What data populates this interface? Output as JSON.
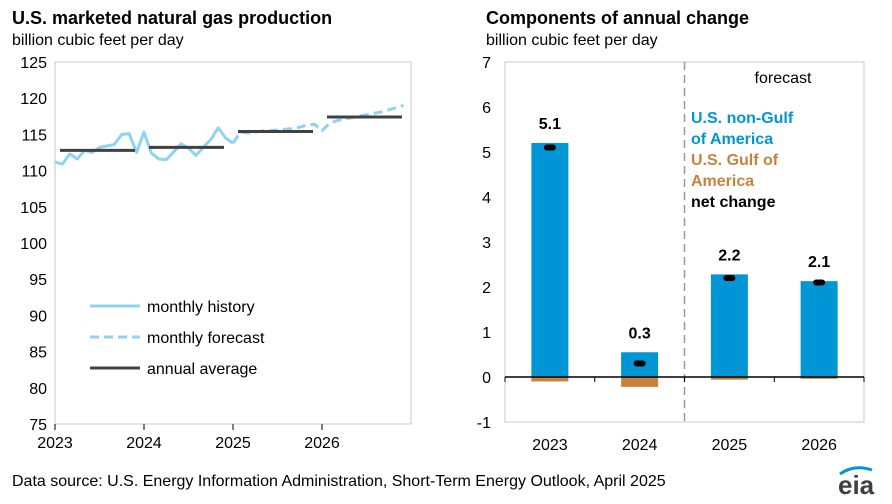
{
  "chart_data": [
    {
      "type": "line",
      "title": "U.S. marketed natural gas production",
      "subtitle": "billion cubic feet per day",
      "x_ticks": [
        "2023",
        "2024",
        "2025",
        "2026"
      ],
      "ylim": [
        75,
        125
      ],
      "y_ticks": [
        75,
        80,
        85,
        90,
        95,
        100,
        105,
        110,
        115,
        120,
        125
      ],
      "grid": false,
      "legend_position": "bottom-left",
      "series": [
        {
          "name": "monthly history",
          "style": "solid",
          "color": "#8fd3f4",
          "x": [
            "2023-01",
            "2023-02",
            "2023-03",
            "2023-04",
            "2023-05",
            "2023-06",
            "2023-07",
            "2023-08",
            "2023-09",
            "2023-10",
            "2023-11",
            "2023-12",
            "2024-01",
            "2024-02",
            "2024-03",
            "2024-04",
            "2024-05",
            "2024-06",
            "2024-07",
            "2024-08",
            "2024-09",
            "2024-10",
            "2024-11",
            "2024-12",
            "2025-01"
          ],
          "values": [
            111.2,
            110.9,
            112.3,
            111.6,
            112.8,
            112.5,
            113.2,
            113.4,
            113.6,
            115.0,
            115.1,
            112.5,
            115.3,
            112.4,
            111.6,
            111.5,
            112.6,
            113.7,
            113.1,
            112.1,
            113.2,
            114.3,
            115.9,
            114.5,
            113.8
          ]
        },
        {
          "name": "monthly forecast",
          "style": "dashed",
          "color": "#8fd3f4",
          "x": [
            "2025-01",
            "2025-02",
            "2025-03",
            "2025-04",
            "2025-05",
            "2025-06",
            "2025-07",
            "2025-08",
            "2025-09",
            "2025-10",
            "2025-11",
            "2025-12",
            "2026-01",
            "2026-02",
            "2026-03",
            "2026-04",
            "2026-05",
            "2026-06",
            "2026-07",
            "2026-08",
            "2026-09",
            "2026-10",
            "2026-11",
            "2026-12"
          ],
          "values": [
            113.8,
            115.3,
            115.2,
            115.3,
            115.5,
            115.5,
            115.6,
            115.7,
            115.8,
            116.0,
            116.3,
            116.4,
            115.5,
            116.5,
            116.9,
            117.1,
            117.3,
            117.5,
            117.7,
            117.9,
            118.1,
            118.4,
            118.7,
            119.0
          ]
        },
        {
          "name": "annual average",
          "style": "step",
          "color": "#404040",
          "x": [
            "2023",
            "2024",
            "2025",
            "2026"
          ],
          "values": [
            112.8,
            113.2,
            115.4,
            117.4
          ]
        }
      ]
    },
    {
      "type": "bar",
      "title": "Components of annual change",
      "subtitle": "billion cubic feet per day",
      "categories": [
        "2023",
        "2024",
        "2025",
        "2026"
      ],
      "ylim": [
        -1,
        7
      ],
      "y_ticks": [
        -1,
        0,
        1,
        2,
        3,
        4,
        5,
        6,
        7
      ],
      "grid": false,
      "forecast_label": "forecast",
      "forecast_starts_at": "2025",
      "legend_position": "top-right",
      "series": [
        {
          "name": "U.S. non-Gulf of America",
          "color": "#0096d6",
          "values": [
            5.2,
            0.55,
            2.28,
            2.13
          ]
        },
        {
          "name": "U.S. Gulf of America",
          "color": "#c8823c",
          "values": [
            -0.1,
            -0.22,
            -0.06,
            -0.04
          ]
        },
        {
          "name": "net change",
          "color": "#000000",
          "marker": "point",
          "values": [
            5.1,
            0.3,
            2.2,
            2.1
          ]
        }
      ],
      "data_labels": [
        "5.1",
        "0.3",
        "2.2",
        "2.1"
      ]
    }
  ],
  "legend_right": {
    "line1": "U.S. non-Gulf",
    "line2": "of America",
    "line3": "U.S. Gulf of",
    "line4": "America",
    "line5": "net change"
  },
  "source": "Data source: U.S. Energy Information Administration, Short-Term Energy Outlook, April 2025",
  "logo_text": "eia"
}
